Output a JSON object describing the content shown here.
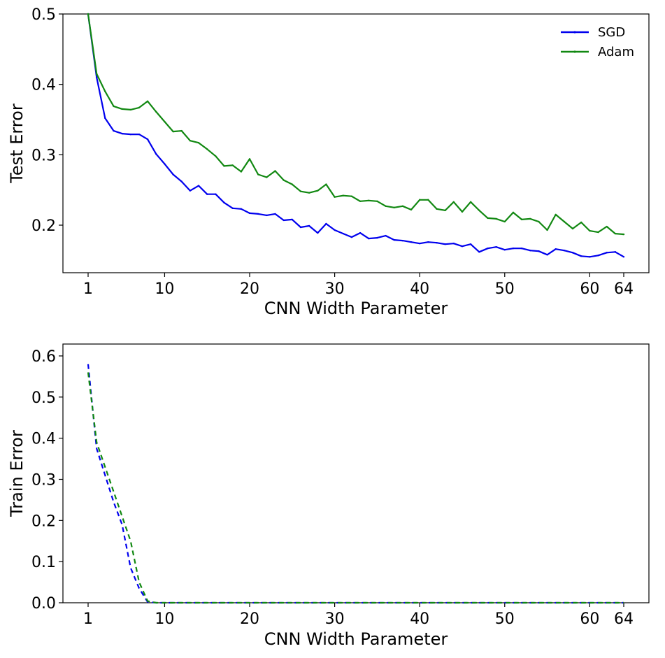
{
  "chart_data": [
    {
      "type": "line",
      "xlabel": "CNN Width Parameter",
      "ylabel": "Test Error",
      "xlim": [
        1,
        64
      ],
      "ylim": [
        0.13,
        0.5
      ],
      "x_ticks": [
        1,
        10,
        20,
        30,
        40,
        50,
        60,
        64
      ],
      "y_ticks": [
        0.2,
        0.3,
        0.4,
        0.5
      ],
      "y_tick_labels": [
        "0.2",
        "0.3",
        "0.4",
        "0.5"
      ],
      "legend": "top-right",
      "grid": false,
      "x": [
        1,
        2,
        3,
        4,
        5,
        6,
        7,
        8,
        9,
        10,
        11,
        12,
        13,
        14,
        15,
        16,
        17,
        18,
        19,
        20,
        21,
        22,
        23,
        24,
        25,
        26,
        27,
        28,
        29,
        30,
        31,
        32,
        33,
        34,
        35,
        36,
        37,
        38,
        39,
        40,
        41,
        42,
        43,
        44,
        45,
        46,
        47,
        48,
        49,
        50,
        51,
        52,
        53,
        54,
        55,
        56,
        57,
        58,
        59,
        60,
        61,
        62,
        63,
        64
      ],
      "series": [
        {
          "name": "SGD",
          "color": "#0000ee",
          "style": "solid",
          "values": [
            0.5,
            0.41,
            0.352,
            0.334,
            0.33,
            0.329,
            0.329,
            0.322,
            0.301,
            0.287,
            0.272,
            0.262,
            0.249,
            0.256,
            0.244,
            0.244,
            0.232,
            0.224,
            0.223,
            0.217,
            0.216,
            0.214,
            0.216,
            0.207,
            0.208,
            0.197,
            0.199,
            0.189,
            0.202,
            0.193,
            0.188,
            0.183,
            0.189,
            0.181,
            0.182,
            0.185,
            0.179,
            0.178,
            0.176,
            0.174,
            0.176,
            0.175,
            0.173,
            0.174,
            0.17,
            0.173,
            0.162,
            0.167,
            0.169,
            0.165,
            0.167,
            0.167,
            0.164,
            0.163,
            0.158,
            0.166,
            0.164,
            0.161,
            0.156,
            0.155,
            0.157,
            0.161,
            0.162,
            0.155
          ]
        },
        {
          "name": "Adam",
          "color": "#118811",
          "style": "solid",
          "values": [
            0.5,
            0.415,
            0.39,
            0.369,
            0.365,
            0.364,
            0.367,
            0.376,
            0.361,
            0.347,
            0.333,
            0.334,
            0.32,
            0.317,
            0.308,
            0.298,
            0.284,
            0.285,
            0.276,
            0.294,
            0.272,
            0.268,
            0.277,
            0.264,
            0.258,
            0.248,
            0.246,
            0.249,
            0.258,
            0.24,
            0.242,
            0.241,
            0.234,
            0.235,
            0.234,
            0.227,
            0.225,
            0.227,
            0.222,
            0.236,
            0.236,
            0.223,
            0.221,
            0.233,
            0.219,
            0.233,
            0.221,
            0.21,
            0.209,
            0.205,
            0.218,
            0.208,
            0.209,
            0.205,
            0.193,
            0.215,
            0.205,
            0.195,
            0.204,
            0.192,
            0.19,
            0.198,
            0.188,
            0.187
          ]
        }
      ]
    },
    {
      "type": "line",
      "xlabel": "CNN Width Parameter",
      "ylabel": "Train Error",
      "xlim": [
        1,
        64
      ],
      "ylim": [
        0,
        0.6
      ],
      "x_ticks": [
        1,
        10,
        20,
        30,
        40,
        50,
        60,
        64
      ],
      "y_ticks": [
        0,
        0.1,
        0.2,
        0.3,
        0.4,
        0.5,
        0.6
      ],
      "y_tick_labels": [
        "0.0",
        "0.1",
        "0.2",
        "0.3",
        "0.4",
        "0.5",
        "0.6"
      ],
      "grid": false,
      "x": [
        1,
        2,
        3,
        4,
        5,
        6,
        7,
        8,
        9,
        10,
        12,
        15,
        20,
        25,
        30,
        35,
        40,
        45,
        50,
        55,
        60,
        64
      ],
      "series": [
        {
          "color": "#0000ee",
          "style": "dashed",
          "values": [
            0.58,
            0.375,
            0.31,
            0.245,
            0.19,
            0.085,
            0.035,
            0.002,
            0,
            0,
            0,
            0,
            0,
            0,
            0,
            0,
            0,
            0,
            0,
            0,
            0,
            0
          ]
        },
        {
          "color": "#118811",
          "style": "dashed",
          "values": [
            0.56,
            0.39,
            0.33,
            0.27,
            0.21,
            0.15,
            0.05,
            0.004,
            0,
            0,
            0,
            0,
            0,
            0,
            0,
            0,
            0,
            0,
            0,
            0,
            0,
            0
          ]
        }
      ]
    }
  ]
}
